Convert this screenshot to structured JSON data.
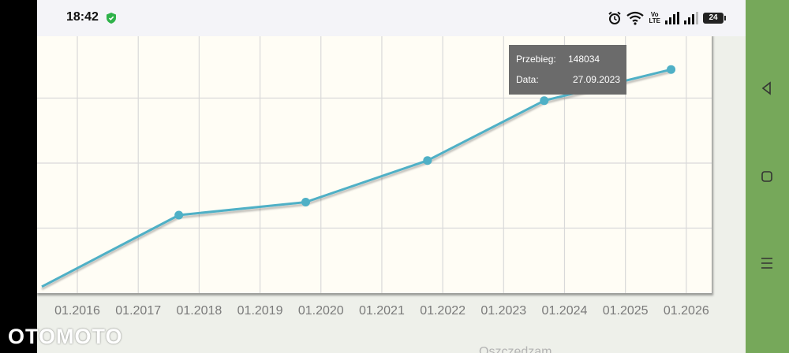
{
  "status_bar": {
    "time": "18:42",
    "battery": "24",
    "volte_label_top": "Vo",
    "volte_label_bottom": "LTE"
  },
  "chart_data": {
    "type": "line",
    "x_tick_labels": [
      "01.2016",
      "01.2017",
      "01.2018",
      "01.2019",
      "01.2020",
      "01.2021",
      "01.2022",
      "01.2023",
      "01.2024",
      "01.2025",
      "01.2026"
    ],
    "series": [
      {
        "values": [
          {
            "x": "2015-06",
            "y": 5000
          },
          {
            "x": "2017-09",
            "y": 60000
          },
          {
            "x": "2019-10",
            "y": 70000
          },
          {
            "x": "2021-10",
            "y": 102000
          },
          {
            "x": "2023-09",
            "y": 148034
          },
          {
            "x": "2025-10",
            "y": 172000
          }
        ],
        "color": "#4fb0c6"
      }
    ],
    "xlim": [
      "2015-06",
      "2026-06"
    ],
    "ylim": [
      0,
      200000
    ],
    "y_gridlines": [
      50000,
      100000,
      150000
    ],
    "grid": true,
    "line_color": "#4fb0c6",
    "plot_background": "#fffdf5",
    "grid_color": "#d9d9d9"
  },
  "tooltip": {
    "mileage_label": "Przebieg:",
    "mileage_value": "148034",
    "date_label": "Data:",
    "date_value": "27.09.2023"
  },
  "bottom_partial_text": "Oszczędzam",
  "nav": {
    "back": "back-icon",
    "home": "home-icon",
    "recents": "recents-icon"
  },
  "watermark": "OTOMOTO"
}
